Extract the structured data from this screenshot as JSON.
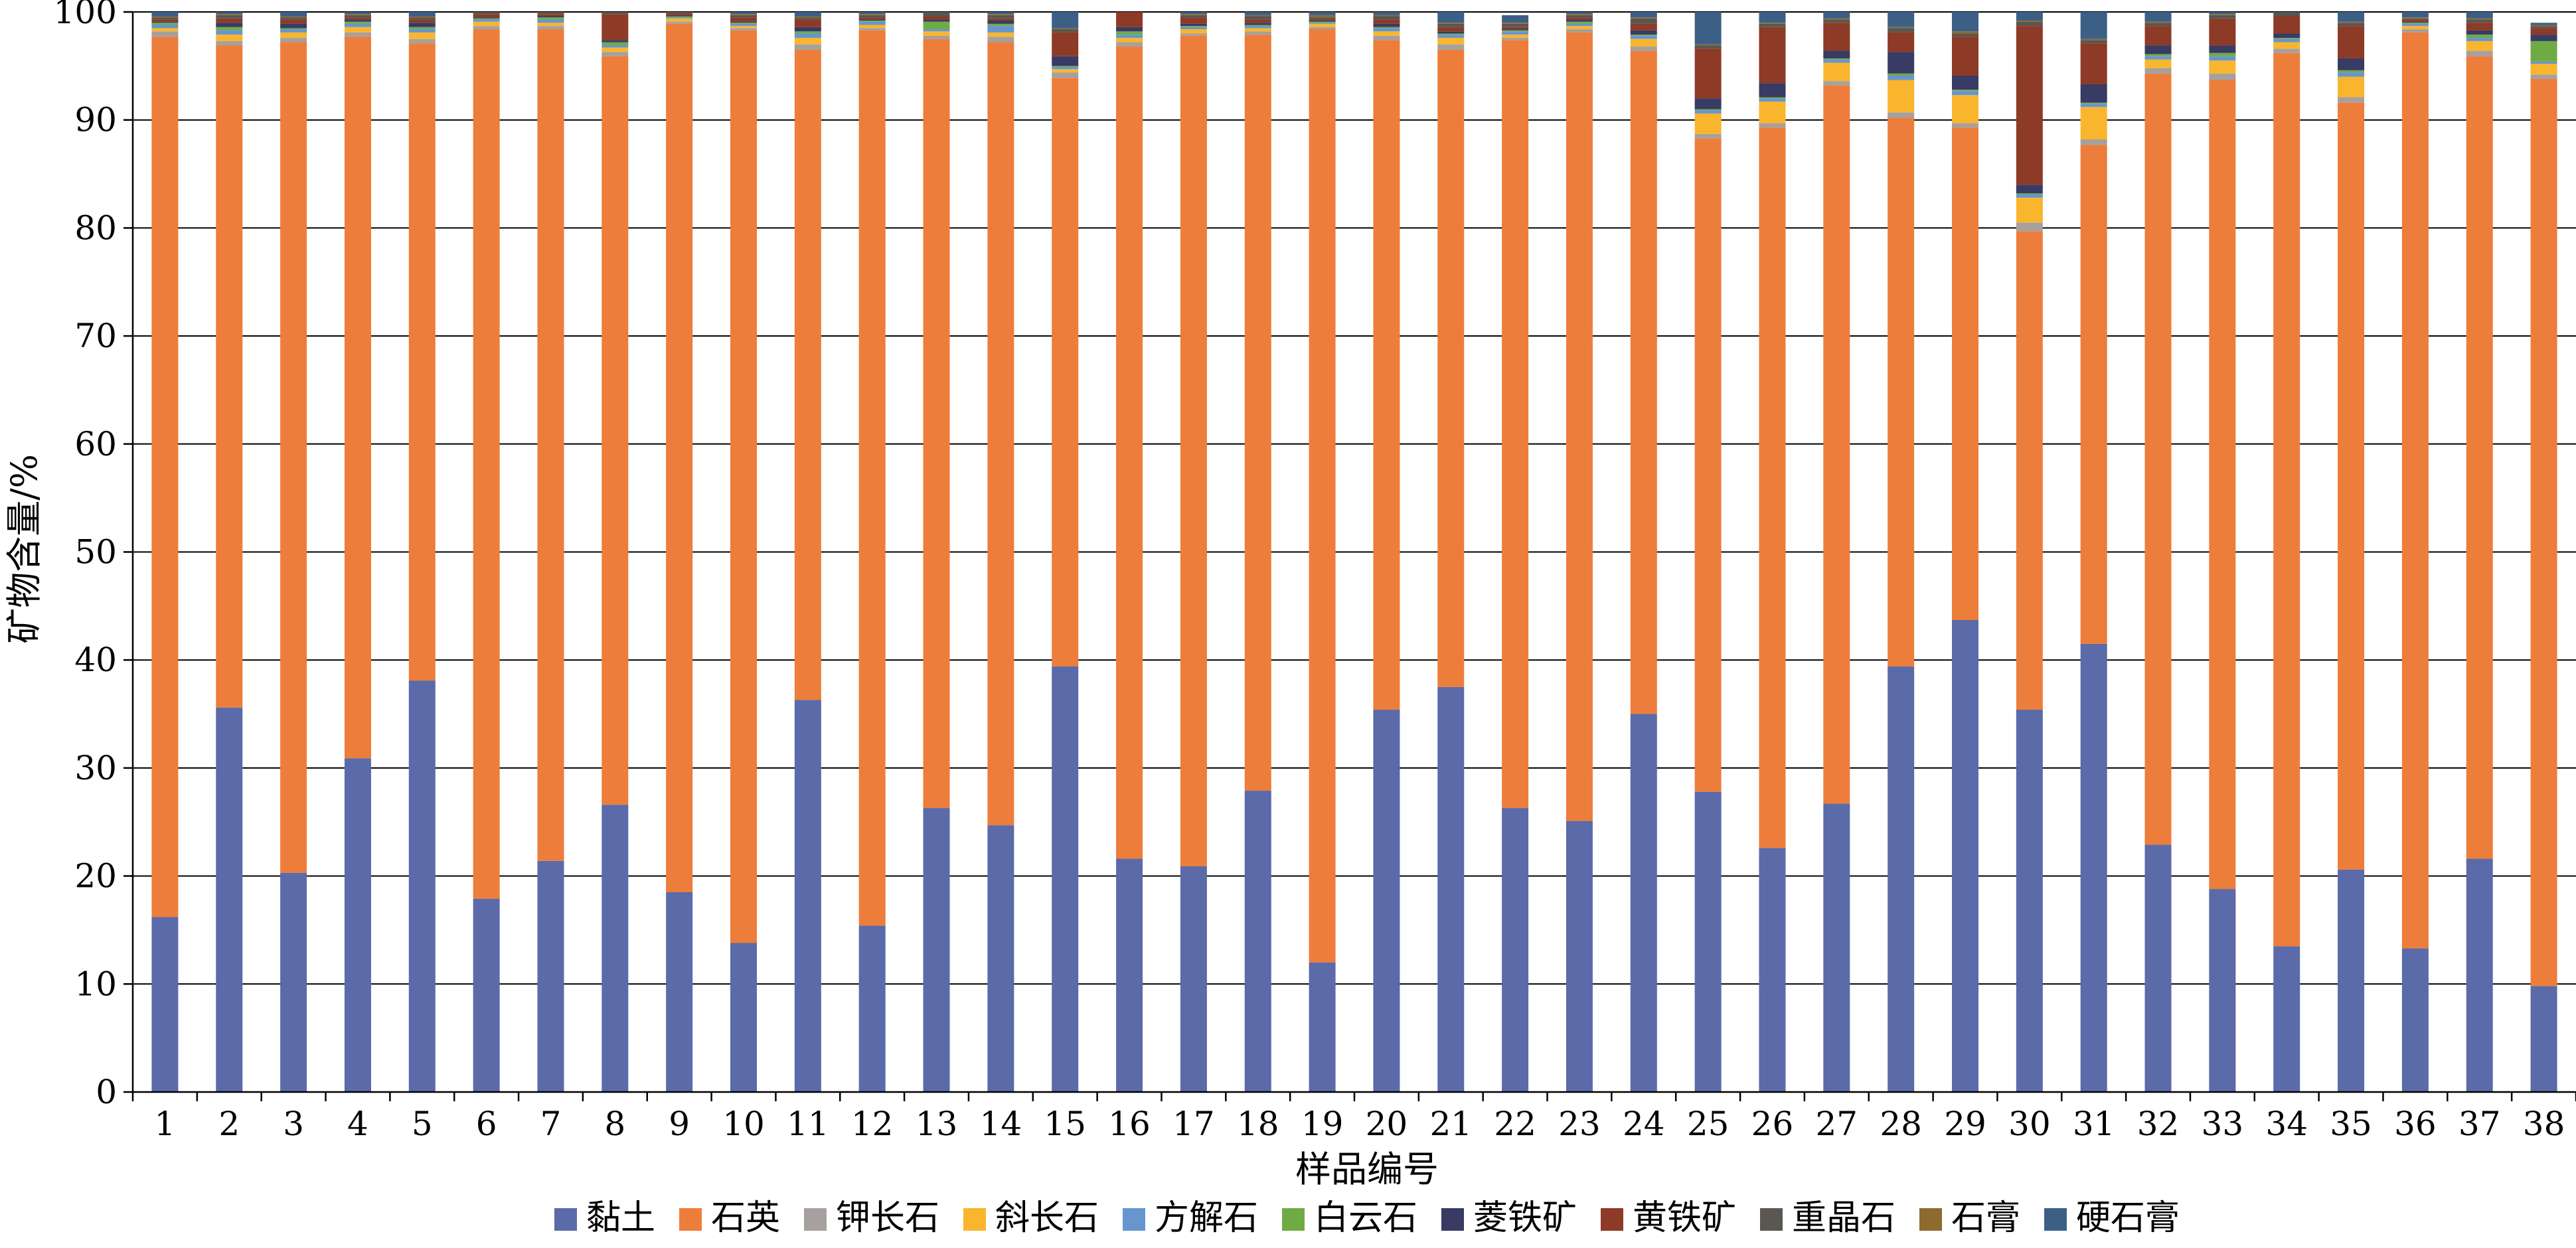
{
  "chart_data": {
    "type": "bar",
    "stacked": true,
    "title": "",
    "xlabel": "样品编号",
    "ylabel": "矿物含量/%",
    "ylim": [
      0,
      100
    ],
    "yticks": [
      0,
      10,
      20,
      30,
      40,
      50,
      60,
      70,
      80,
      90,
      100
    ],
    "grid": true,
    "legend_position": "bottom",
    "categories": [
      "1",
      "2",
      "3",
      "4",
      "5",
      "6",
      "7",
      "8",
      "9",
      "10",
      "11",
      "12",
      "13",
      "14",
      "15",
      "16",
      "17",
      "18",
      "19",
      "20",
      "21",
      "22",
      "23",
      "24",
      "25",
      "26",
      "27",
      "28",
      "29",
      "30",
      "31",
      "32",
      "33",
      "34",
      "35",
      "36",
      "37",
      "38"
    ],
    "series": [
      {
        "name": "黏土",
        "color": "#5b6aa8",
        "values": [
          16.2,
          35.6,
          20.3,
          30.9,
          38.1,
          17.9,
          21.4,
          26.6,
          18.5,
          13.8,
          36.3,
          15.4,
          26.3,
          24.7,
          39.4,
          21.6,
          20.9,
          27.9,
          12.0,
          35.4,
          37.5,
          26.3,
          25.1,
          35.0,
          27.8,
          22.6,
          26.7,
          39.4,
          43.7,
          35.4,
          41.5,
          22.9,
          18.8,
          13.5,
          20.6,
          13.3,
          21.6,
          9.8
        ]
      },
      {
        "name": "石英",
        "color": "#ed7d3b",
        "values": [
          81.5,
          61.3,
          76.9,
          66.8,
          59.0,
          80.5,
          77.0,
          69.3,
          80.4,
          84.5,
          60.2,
          82.9,
          71.2,
          72.5,
          54.5,
          75.2,
          76.9,
          70.0,
          86.4,
          62.0,
          59.0,
          71.1,
          73.0,
          61.4,
          60.5,
          66.7,
          66.5,
          50.8,
          45.6,
          44.3,
          46.2,
          71.4,
          74.9,
          82.7,
          71.0,
          84.8,
          74.3,
          84.0
        ]
      },
      {
        "name": "钾长石",
        "color": "#a6a09e",
        "values": [
          0.5,
          0.4,
          0.4,
          0.4,
          0.4,
          0.3,
          0.3,
          0.4,
          0.2,
          0.2,
          0.5,
          0.2,
          0.3,
          0.5,
          0.5,
          0.4,
          0.2,
          0.3,
          0.2,
          0.4,
          0.5,
          0.2,
          0.3,
          0.4,
          0.4,
          0.4,
          0.4,
          0.5,
          0.4,
          0.8,
          0.5,
          0.5,
          0.6,
          0.4,
          0.5,
          0.3,
          0.5,
          0.4
        ]
      },
      {
        "name": "斜长石",
        "color": "#fab52e",
        "values": [
          0.3,
          0.6,
          0.5,
          0.5,
          0.6,
          0.4,
          0.3,
          0.4,
          0.3,
          0.2,
          0.6,
          0.3,
          0.4,
          0.4,
          0.3,
          0.4,
          0.4,
          0.3,
          0.3,
          0.4,
          0.6,
          0.3,
          0.3,
          0.7,
          1.9,
          2.0,
          1.7,
          3.0,
          2.6,
          2.3,
          3.0,
          0.8,
          1.2,
          0.6,
          1.9,
          0.3,
          0.9,
          1.0
        ]
      },
      {
        "name": "方解石",
        "color": "#6795d0",
        "values": [
          0.3,
          0.4,
          0.3,
          0.3,
          0.3,
          0.2,
          0.3,
          0.2,
          0.1,
          0.2,
          0.4,
          0.3,
          0.2,
          0.6,
          0.2,
          0.3,
          0.2,
          0.2,
          0.1,
          0.3,
          0.3,
          0.3,
          0.2,
          0.3,
          0.3,
          0.3,
          0.3,
          0.4,
          0.4,
          0.3,
          0.3,
          0.3,
          0.4,
          0.3,
          0.4,
          0.2,
          0.3,
          0.2
        ]
      },
      {
        "name": "白云石",
        "color": "#6fab45",
        "values": [
          0.2,
          0.3,
          0.1,
          0.2,
          0.2,
          0.1,
          0.2,
          0.3,
          0.1,
          0.1,
          0.2,
          0.1,
          0.7,
          0.2,
          0.1,
          0.3,
          0.1,
          0.1,
          0.1,
          0.1,
          0.1,
          0.1,
          0.2,
          0.1,
          0.1,
          0.1,
          0.1,
          0.2,
          0.1,
          0.1,
          0.1,
          0.2,
          0.3,
          0.1,
          0.2,
          0.1,
          0.3,
          1.9
        ]
      },
      {
        "name": "菱铁矿",
        "color": "#383b63",
        "values": [
          0.1,
          0.4,
          0.4,
          0.2,
          0.4,
          0.1,
          0.1,
          0.2,
          0.1,
          0.1,
          0.4,
          0.1,
          0.2,
          0.3,
          0.9,
          0.4,
          0.2,
          0.2,
          0.1,
          0.3,
          0.2,
          0.1,
          0.2,
          0.4,
          1.0,
          1.3,
          0.7,
          2.0,
          1.3,
          0.8,
          1.7,
          0.8,
          0.7,
          0.4,
          1.1,
          0.1,
          0.4,
          0.6
        ]
      },
      {
        "name": "黄铁矿",
        "color": "#8d3a27",
        "values": [
          0.2,
          0.4,
          0.4,
          0.2,
          0.3,
          0.3,
          0.2,
          2.4,
          0.2,
          0.4,
          0.7,
          0.2,
          0.3,
          0.2,
          2.2,
          1.5,
          0.6,
          0.3,
          0.1,
          0.4,
          0.4,
          0.2,
          0.2,
          0.6,
          4.6,
          5.2,
          2.6,
          1.8,
          3.6,
          14.7,
          3.8,
          1.8,
          2.5,
          1.6,
          3.0,
          0.2,
          0.7,
          0.6
        ]
      },
      {
        "name": "重晶石",
        "color": "#5a5651",
        "values": [
          0.2,
          0.3,
          0.2,
          0.2,
          0.2,
          0.3,
          0.3,
          0.4,
          0.1,
          0.2,
          0.2,
          0.2,
          0.5,
          0.3,
          0.3,
          0.3,
          0.2,
          0.3,
          0.2,
          0.3,
          0.3,
          0.3,
          0.2,
          0.5,
          0.3,
          0.3,
          0.3,
          0.4,
          0.3,
          0.4,
          0.3,
          0.3,
          0.3,
          0.4,
          0.3,
          0.1,
          0.3,
          0.2
        ]
      },
      {
        "name": "石膏",
        "color": "#8e6a2e",
        "values": [
          0.1,
          0.1,
          0.1,
          0.1,
          0.1,
          0.2,
          0.2,
          0.2,
          0.1,
          0.1,
          0.1,
          0.1,
          0.1,
          0.1,
          0.1,
          0.1,
          0.1,
          0.1,
          0.2,
          0.1,
          0.1,
          0.1,
          0.1,
          0.1,
          0.1,
          0.1,
          0.1,
          0.1,
          0.2,
          0.1,
          0.1,
          0.1,
          0.1,
          0.1,
          0.1,
          0.1,
          0.1,
          0.1
        ]
      },
      {
        "name": "硬石膏",
        "color": "#3c5f86",
        "values": [
          0.4,
          0.2,
          0.4,
          0.2,
          0.4,
          0.2,
          0.2,
          0.6,
          0.4,
          0.2,
          0.4,
          0.2,
          0.3,
          0.7,
          1.5,
          0.5,
          0.2,
          0.3,
          0.3,
          0.3,
          1.0,
          0.7,
          0.2,
          0.5,
          3.0,
          1.0,
          0.6,
          1.4,
          1.8,
          1.8,
          2.5,
          0.9,
          0.3,
          0.6,
          0.9,
          0.5,
          0.6,
          0.2
        ]
      }
    ]
  }
}
